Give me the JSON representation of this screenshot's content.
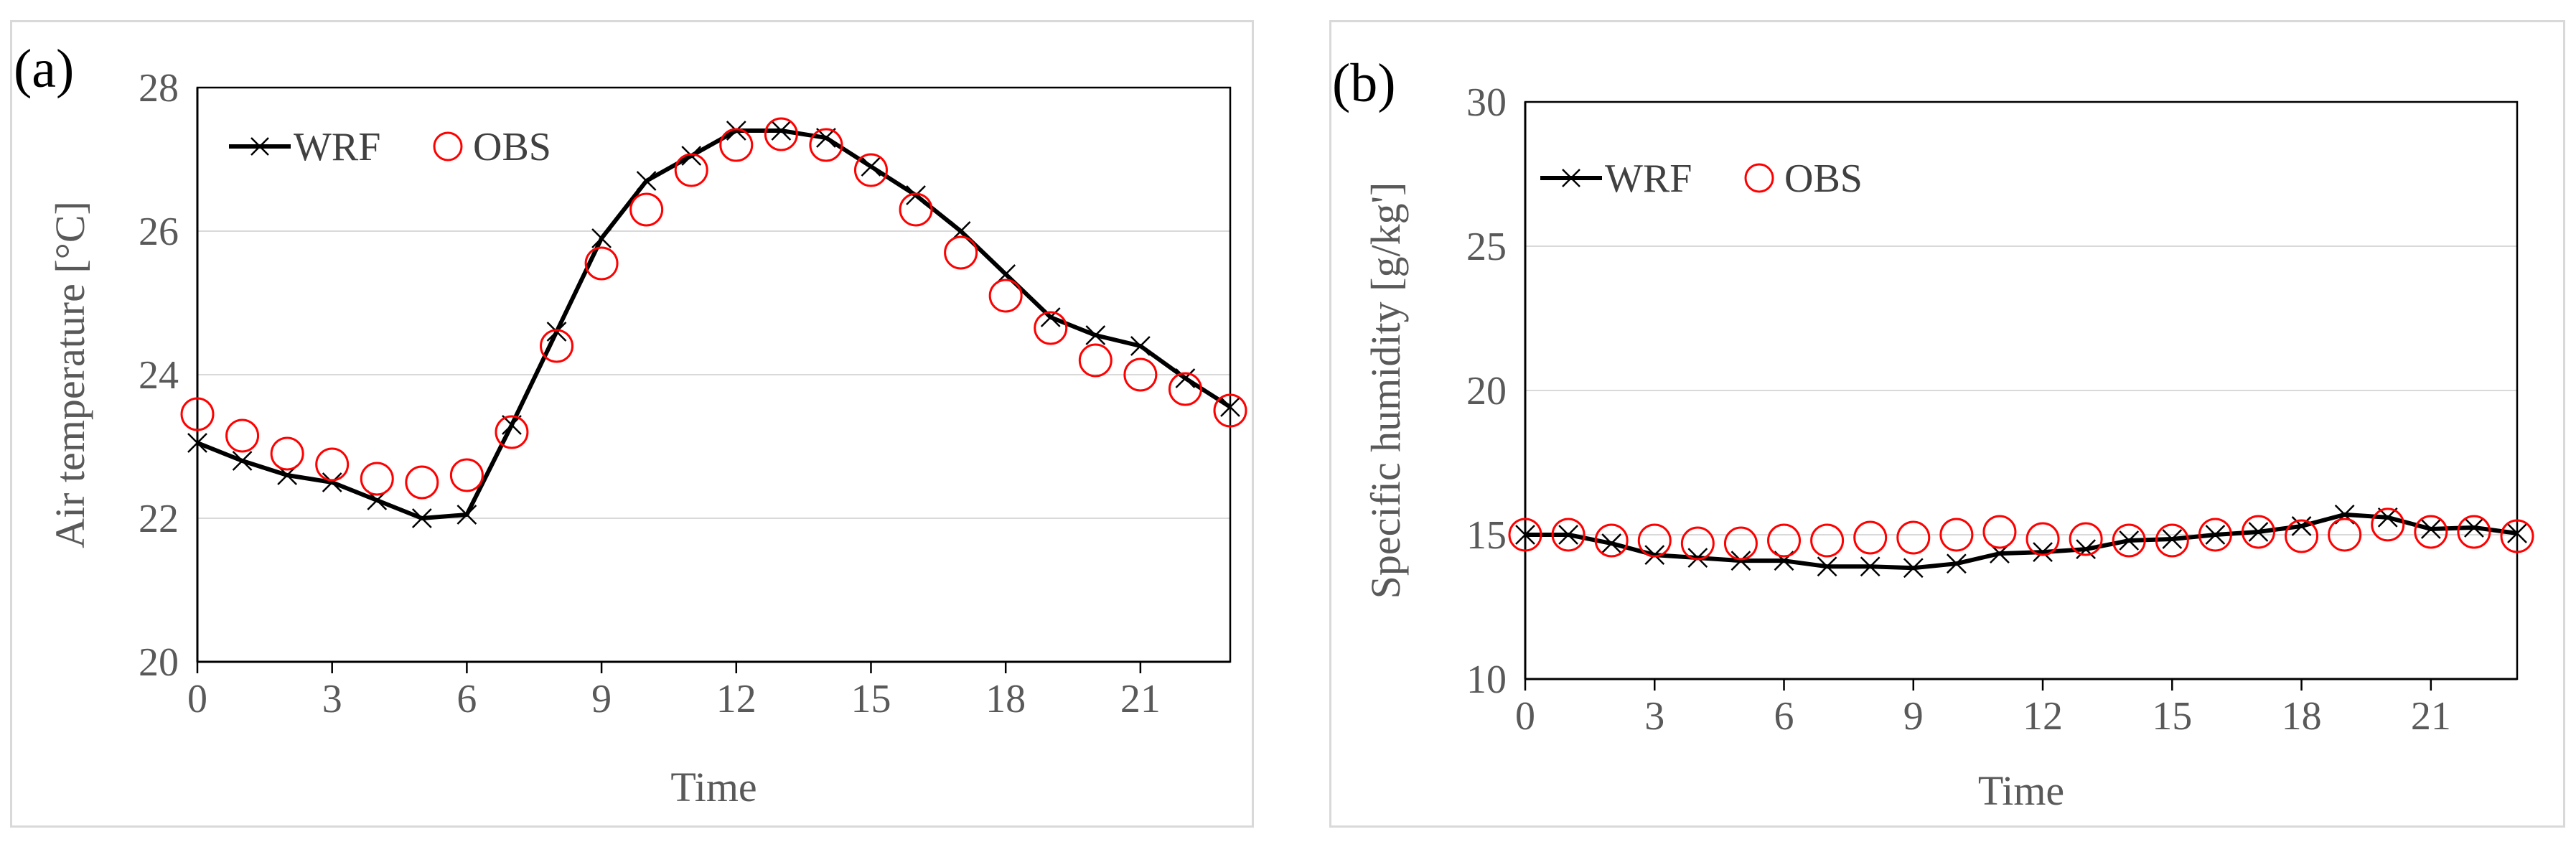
{
  "chart_data": [
    {
      "type": "line",
      "panel_label": "(a)",
      "title": "",
      "xlabel": "Time",
      "ylabel": "Air temperature [°C]",
      "xlim": [
        0,
        23
      ],
      "ylim": [
        20,
        28
      ],
      "xticks": [
        0,
        3,
        6,
        9,
        12,
        15,
        18,
        21
      ],
      "yticks": [
        20,
        22,
        24,
        26,
        28
      ],
      "grid": true,
      "legend_position": "top-left",
      "x": [
        0,
        1,
        2,
        3,
        4,
        5,
        6,
        7,
        8,
        9,
        10,
        11,
        12,
        13,
        14,
        15,
        16,
        17,
        18,
        19,
        20,
        21,
        22,
        23
      ],
      "series": [
        {
          "name": "WRF",
          "marker": "x",
          "color": "#000000",
          "values": [
            23.05,
            22.8,
            22.6,
            22.5,
            22.25,
            22.0,
            22.05,
            23.3,
            24.6,
            25.9,
            26.7,
            27.05,
            27.4,
            27.4,
            27.3,
            26.9,
            26.5,
            26.0,
            25.4,
            24.8,
            24.55,
            24.4,
            23.95,
            23.55
          ]
        },
        {
          "name": "OBS",
          "marker": "circle",
          "color": "#ff0000",
          "values": [
            23.45,
            23.15,
            22.9,
            22.75,
            22.55,
            22.5,
            22.6,
            23.2,
            24.4,
            25.55,
            26.3,
            26.85,
            27.2,
            27.35,
            27.2,
            26.85,
            26.3,
            25.7,
            25.1,
            24.65,
            24.2,
            24.0,
            23.8,
            23.5
          ]
        }
      ]
    },
    {
      "type": "line",
      "panel_label": "(b)",
      "title": "",
      "xlabel": "Time",
      "ylabel": "Specific humidity [g/kg']",
      "xlim": [
        0,
        23
      ],
      "ylim": [
        10,
        30
      ],
      "xticks": [
        0,
        3,
        6,
        9,
        12,
        15,
        18,
        21
      ],
      "yticks": [
        10,
        15,
        20,
        25,
        30
      ],
      "grid": true,
      "legend_position": "top-left",
      "x": [
        0,
        1,
        2,
        3,
        4,
        5,
        6,
        7,
        8,
        9,
        10,
        11,
        12,
        13,
        14,
        15,
        16,
        17,
        18,
        19,
        20,
        21,
        22,
        23
      ],
      "series": [
        {
          "name": "WRF",
          "marker": "x",
          "color": "#000000",
          "values": [
            15.0,
            15.0,
            14.7,
            14.3,
            14.2,
            14.1,
            14.1,
            13.9,
            13.9,
            13.85,
            14.0,
            14.35,
            14.4,
            14.5,
            14.8,
            14.85,
            15.0,
            15.1,
            15.3,
            15.7,
            15.6,
            15.2,
            15.25,
            15.05
          ]
        },
        {
          "name": "OBS",
          "marker": "circle",
          "color": "#ff0000",
          "values": [
            15.0,
            15.0,
            14.8,
            14.8,
            14.7,
            14.7,
            14.8,
            14.8,
            14.9,
            14.9,
            15.0,
            15.1,
            14.85,
            14.85,
            14.8,
            14.8,
            15.0,
            15.1,
            14.95,
            15.0,
            15.35,
            15.1,
            15.1,
            14.95
          ]
        }
      ]
    }
  ]
}
